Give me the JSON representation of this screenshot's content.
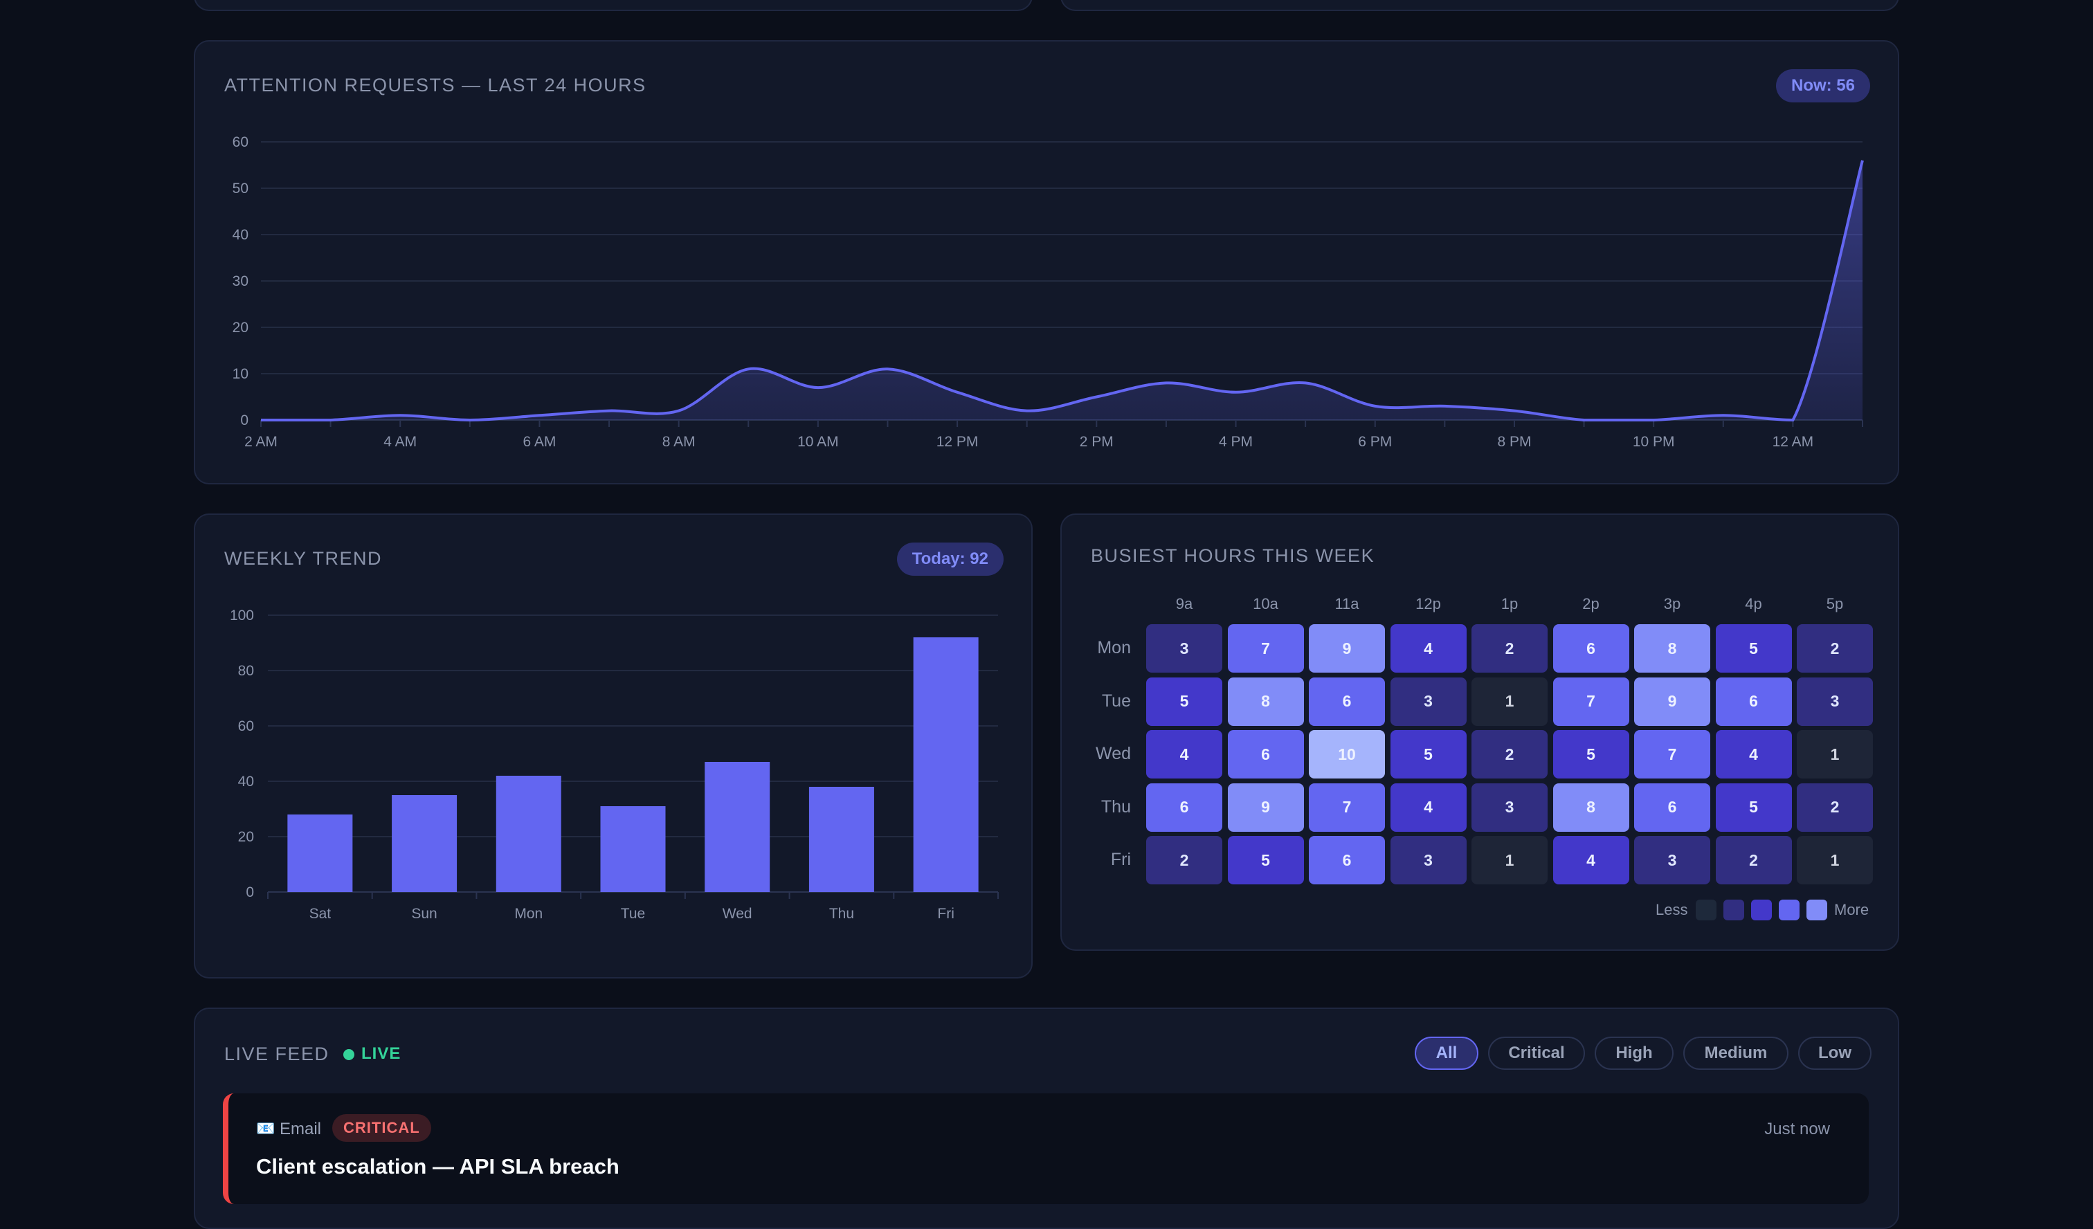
{
  "attention": {
    "title": "ATTENTION REQUESTS — LAST 24 HOURS",
    "badge": "Now: 56",
    "chart_data": {
      "type": "area",
      "x_ticks": [
        "2 AM",
        "4 AM",
        "6 AM",
        "8 AM",
        "10 AM",
        "12 PM",
        "2 PM",
        "4 PM",
        "6 PM",
        "8 PM",
        "10 PM",
        "12 AM"
      ],
      "ylim": [
        0,
        60
      ],
      "y_ticks": [
        0,
        10,
        20,
        30,
        40,
        50,
        60
      ],
      "hours": [
        2,
        3,
        4,
        5,
        6,
        7,
        8,
        9,
        10,
        11,
        12,
        13,
        14,
        15,
        16,
        17,
        18,
        19,
        20,
        21,
        22,
        23,
        24,
        25
      ],
      "values": [
        0,
        0,
        1,
        0,
        1,
        2,
        2,
        11,
        7,
        11,
        6,
        2,
        5,
        8,
        6,
        8,
        3,
        3,
        2,
        0,
        0,
        1,
        0,
        56
      ],
      "color": "#6366f1"
    }
  },
  "weekly": {
    "title": "WEEKLY TREND",
    "badge": "Today: 92",
    "chart_data": {
      "type": "bar",
      "categories": [
        "Sat",
        "Sun",
        "Mon",
        "Tue",
        "Wed",
        "Thu",
        "Fri"
      ],
      "values": [
        28,
        35,
        42,
        31,
        47,
        38,
        92
      ],
      "ylim": [
        0,
        100
      ],
      "y_ticks": [
        0,
        20,
        40,
        60,
        80,
        100
      ],
      "color": "#6366f1"
    }
  },
  "busiest": {
    "title": "BUSIEST HOURS THIS WEEK",
    "chart_data": {
      "type": "heatmap",
      "columns": [
        "9a",
        "10a",
        "11a",
        "12p",
        "1p",
        "2p",
        "3p",
        "4p",
        "5p"
      ],
      "rows": [
        "Mon",
        "Tue",
        "Wed",
        "Thu",
        "Fri"
      ],
      "values": [
        [
          3,
          7,
          9,
          4,
          2,
          6,
          8,
          5,
          2
        ],
        [
          5,
          8,
          6,
          3,
          1,
          7,
          9,
          6,
          3
        ],
        [
          4,
          6,
          10,
          5,
          2,
          5,
          7,
          4,
          1
        ],
        [
          6,
          9,
          7,
          4,
          3,
          8,
          6,
          5,
          2
        ],
        [
          2,
          5,
          6,
          3,
          1,
          4,
          3,
          2,
          1
        ]
      ]
    },
    "legend_less": "Less",
    "legend_more": "More",
    "legend_colors": [
      "#1e293b",
      "#312e81",
      "#4338ca",
      "#6366f1",
      "#818cf8"
    ]
  },
  "feed": {
    "title": "LIVE FEED",
    "live_label": "LIVE",
    "filters": [
      "All",
      "Critical",
      "High",
      "Medium",
      "Low"
    ],
    "item": {
      "icon": "📧",
      "source": "Email",
      "severity": "CRITICAL",
      "title": "Client escalation — API SLA breach",
      "time": "Just now"
    }
  }
}
